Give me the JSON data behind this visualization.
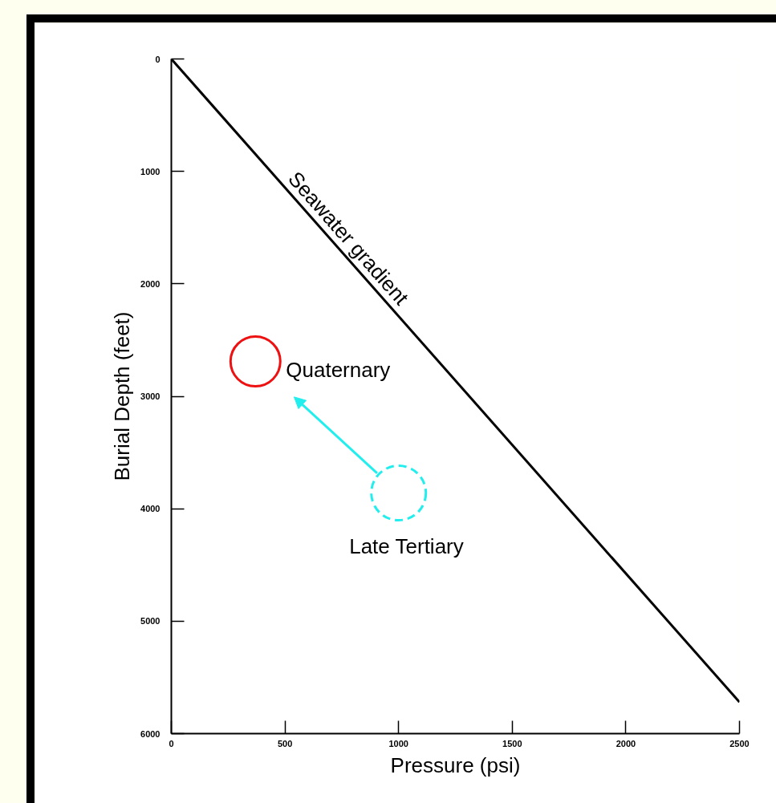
{
  "chart_data": {
    "type": "line",
    "xlabel": "Pressure (psi)",
    "ylabel": "Burial Depth (feet)",
    "x": [
      0,
      2500
    ],
    "series": [
      {
        "color": "#000000",
        "values": [
          0,
          5720
        ]
      },
      {
        "type": "scatter",
        "name": "Quaternary",
        "color": "#ee1111",
        "x": [
          370
        ],
        "values": [
          2690
        ],
        "marker": "circle",
        "line_style": "solid"
      },
      {
        "type": "scatter",
        "name": "Late Tertiary",
        "color": "#22eeee",
        "x": [
          1000
        ],
        "values": [
          3860
        ],
        "marker": "circle",
        "line_style": "dashed"
      }
    ],
    "xlim": [
      0,
      2500
    ],
    "ylim": [
      6000,
      0
    ],
    "xticks": [
      0,
      500,
      1000,
      1500,
      2000,
      2500
    ],
    "yticks": [
      0,
      1000,
      2000,
      3000,
      4000,
      5000,
      6000
    ],
    "grid": false,
    "marker": "none",
    "line_style": "solid",
    "annotations": [
      {
        "text": "Seawater gradient",
        "x": 740,
        "y": 1693
      }
    ]
  }
}
